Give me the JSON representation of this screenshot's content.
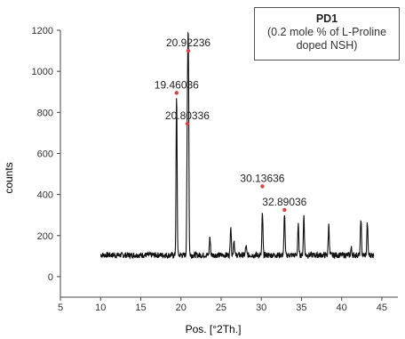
{
  "chart_data": {
    "type": "line",
    "xlabel": "Pos. [°2Th.]",
    "ylabel": "counts",
    "xlim": [
      5,
      47
    ],
    "ylim": [
      -100,
      1200
    ],
    "x_ticks": [
      5,
      10,
      15,
      20,
      25,
      30,
      35,
      40,
      45
    ],
    "y_ticks": [
      0,
      200,
      400,
      600,
      800,
      1000,
      1200
    ],
    "baseline": 105,
    "x_range": [
      10,
      44
    ],
    "peaks": [
      {
        "x": 19.46,
        "y": 870
      },
      {
        "x": 20.8,
        "y": 730
      },
      {
        "x": 20.92,
        "y": 1080
      },
      {
        "x": 23.6,
        "y": 195
      },
      {
        "x": 26.2,
        "y": 250
      },
      {
        "x": 26.6,
        "y": 180
      },
      {
        "x": 28.1,
        "y": 150
      },
      {
        "x": 30.14,
        "y": 310
      },
      {
        "x": 32.89,
        "y": 310
      },
      {
        "x": 34.6,
        "y": 250
      },
      {
        "x": 35.3,
        "y": 300
      },
      {
        "x": 38.4,
        "y": 255
      },
      {
        "x": 41.2,
        "y": 140
      },
      {
        "x": 42.4,
        "y": 285
      },
      {
        "x": 43.2,
        "y": 260
      }
    ],
    "annotations": [
      {
        "label": "20.92236",
        "x": 20.92,
        "y": 1100
      },
      {
        "label": "19.46036",
        "x": 19.46,
        "y": 895
      },
      {
        "label": "20.80336",
        "x": 20.8,
        "y": 745
      },
      {
        "label": "30.13636",
        "x": 30.14,
        "y": 440
      },
      {
        "label": "32.89036",
        "x": 32.89,
        "y": 325
      }
    ],
    "legend": {
      "title": "PD1",
      "text": "(0.2 mole % of L-Proline\ndoped NSH)",
      "position": "top-right"
    },
    "line_color": "#111111",
    "marker_color": "#e04040"
  }
}
